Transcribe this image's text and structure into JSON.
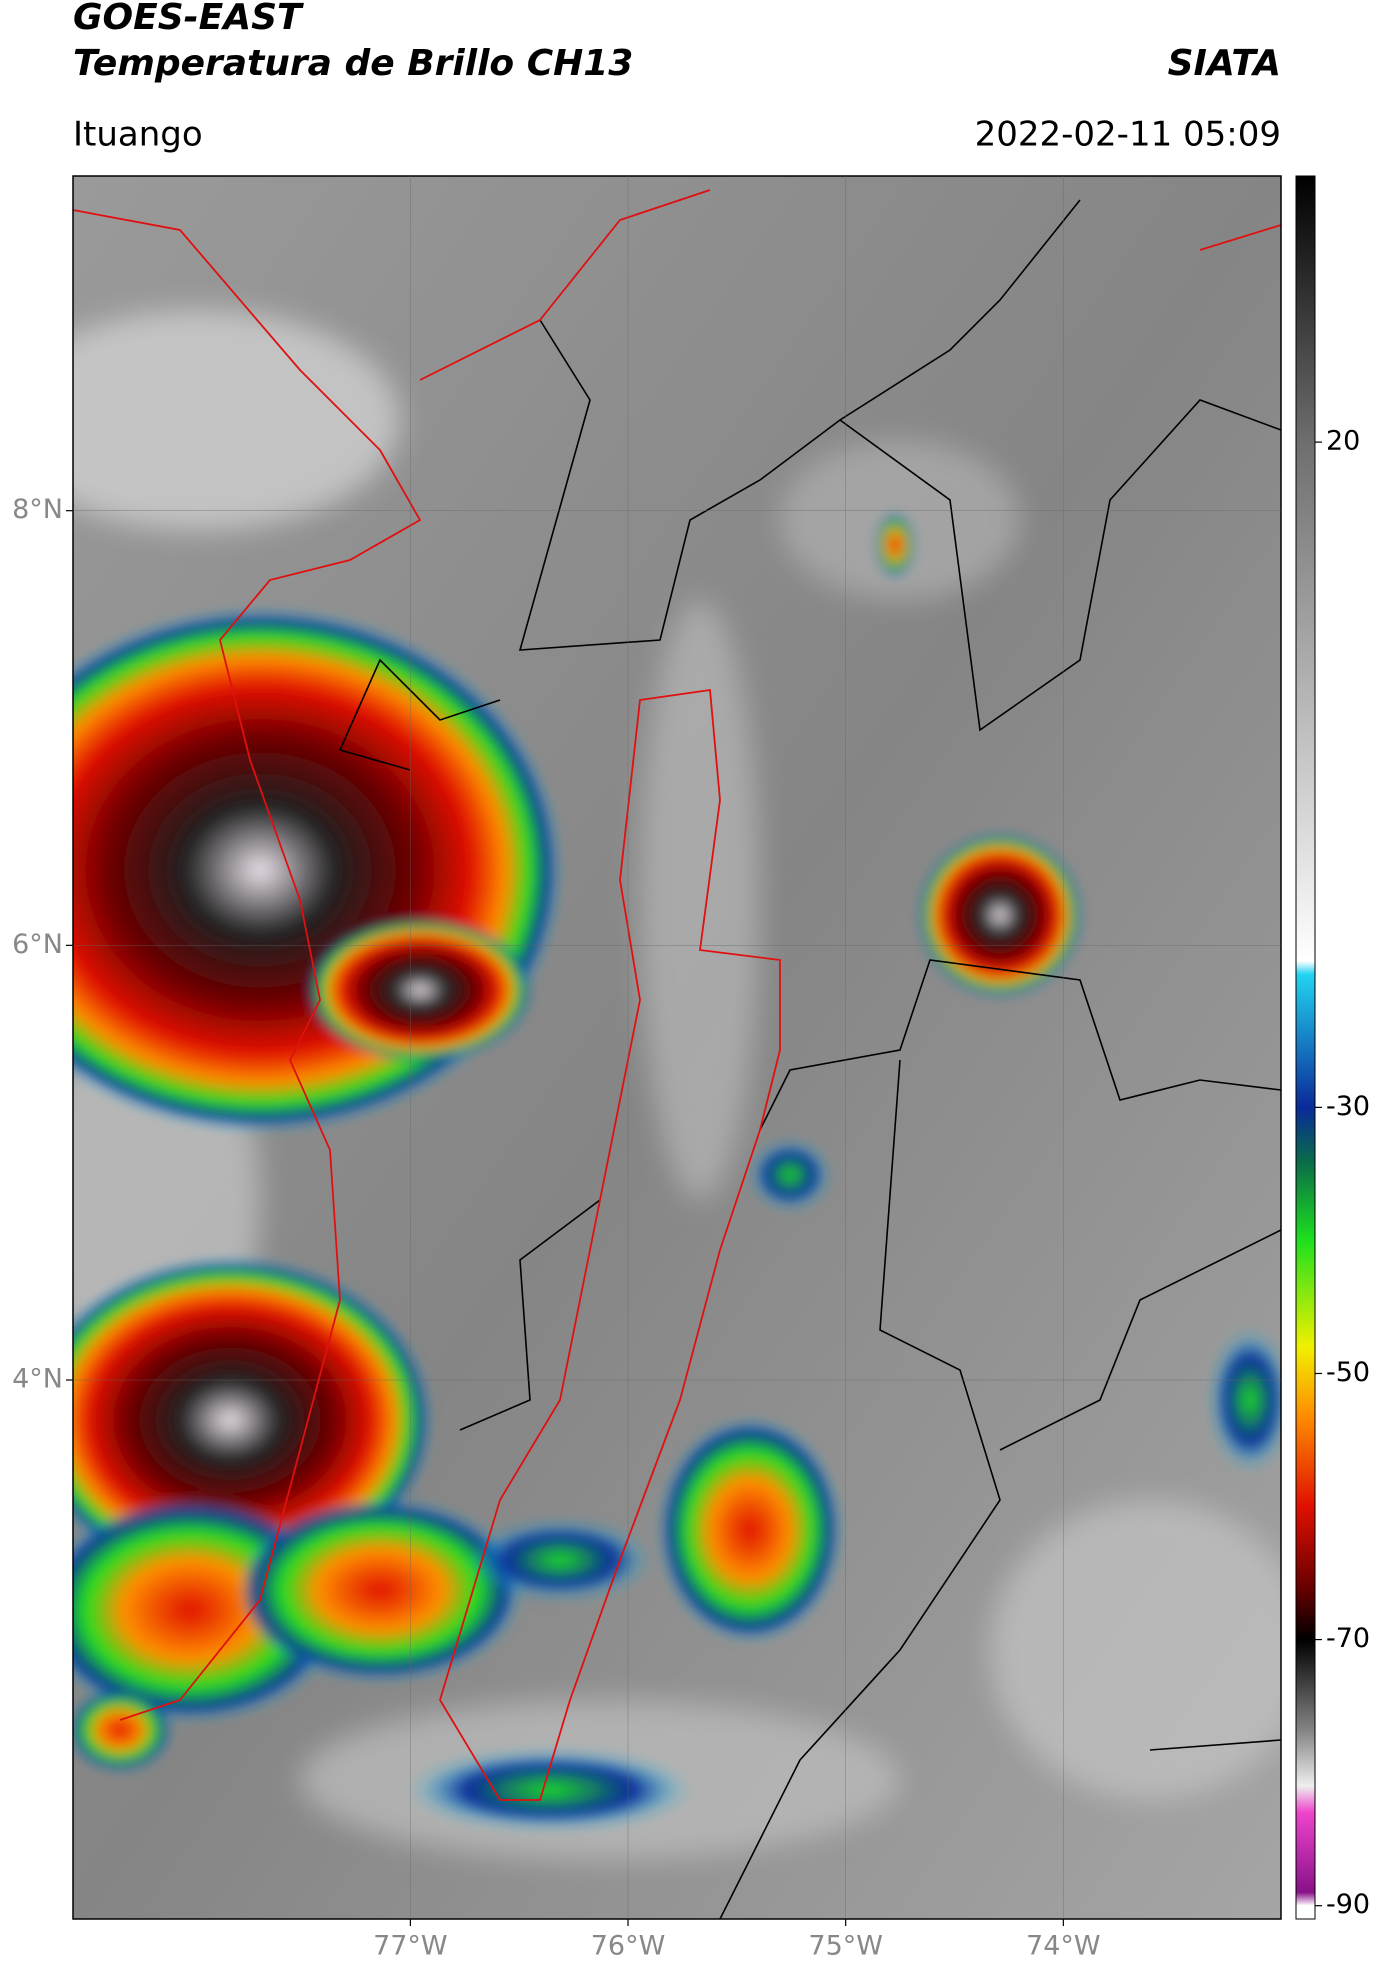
{
  "header": {
    "satellite": "GOES-EAST",
    "product": "Temperatura de Brillo CH13",
    "source": "SIATA",
    "region": "Ituango",
    "datetime": "2022-02-11 05:09"
  },
  "map": {
    "xlim": [
      -78.55,
      -73.0
    ],
    "ylim": [
      1.52,
      9.54
    ],
    "xticks": [
      {
        "value": -77,
        "label": "77°W"
      },
      {
        "value": -76,
        "label": "76°W"
      },
      {
        "value": -75,
        "label": "75°W"
      },
      {
        "value": -74,
        "label": "74°W"
      }
    ],
    "yticks": [
      {
        "value": 8,
        "label": "8°N"
      },
      {
        "value": 6,
        "label": "6°N"
      },
      {
        "value": 4,
        "label": "4°N"
      }
    ],
    "grid": true
  },
  "colorbar": {
    "lim": [
      -91,
      40
    ],
    "ticks": [
      20,
      -30,
      -50,
      -70,
      -90
    ],
    "stops": [
      [
        40,
        "#000000"
      ],
      [
        20,
        "#6e6e6e"
      ],
      [
        -19,
        "#ffffff"
      ],
      [
        -20,
        "#22d3f0"
      ],
      [
        -30,
        "#0a2a9a"
      ],
      [
        -34,
        "#0a6a4a"
      ],
      [
        -40,
        "#1ee01e"
      ],
      [
        -48,
        "#f0f000"
      ],
      [
        -53,
        "#ff9000"
      ],
      [
        -60,
        "#e01000"
      ],
      [
        -66,
        "#6a0000"
      ],
      [
        -70,
        "#000000"
      ],
      [
        -77,
        "#888888"
      ],
      [
        -81,
        "#eeeeee"
      ],
      [
        -83,
        "#ee44cc"
      ],
      [
        -89,
        "#881188"
      ],
      [
        -90,
        "#ffffff"
      ]
    ]
  }
}
